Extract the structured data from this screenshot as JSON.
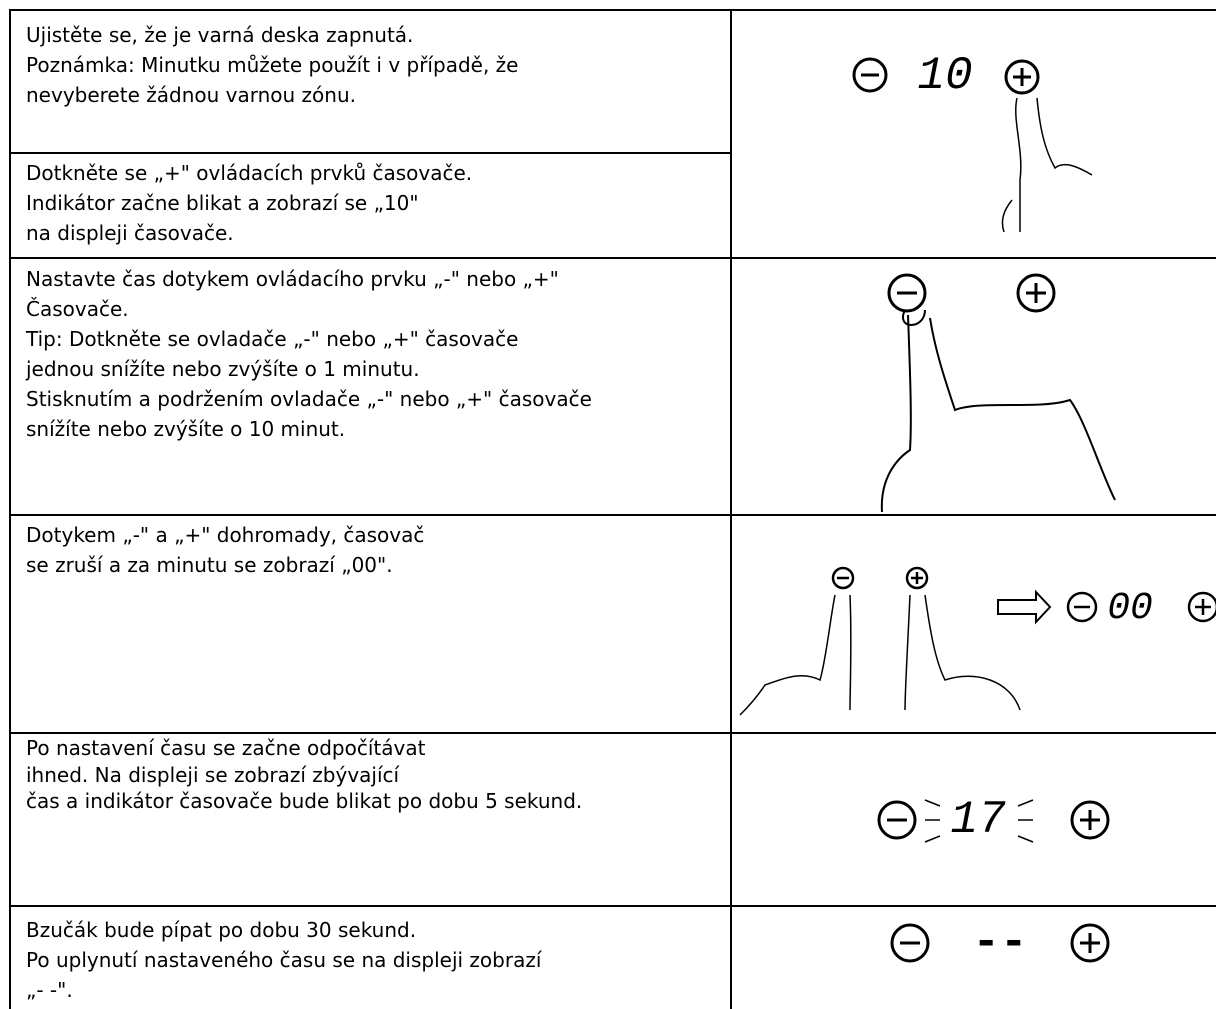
{
  "rows": [
    {
      "lines": [
        "Ujistěte se, že je varná deska zapnutá.",
        "Poznámka: Minutku můžete použít i v případě, že",
        "nevyberete žádnou varnou zónu."
      ]
    },
    {
      "lines": [
        "Dotkněte se „+\" ovládacích prvků časovače.",
        "Indikátor začne blikat a zobrazí se „10\"",
        "na displeji časovače."
      ]
    },
    {
      "lines": [
        "Nastavte čas dotykem ovládacího prvku „-\" nebo „+\"",
        "Časovače.",
        "Tip: Dotkněte se ovladače „-\" nebo „+\" časovače",
        "jednou snížíte nebo zvýšíte o 1 minutu.",
        "Stisknutím a podržením ovladače „-\" nebo „+\" časovače",
        "snížíte nebo zvýšíte o 10 minut."
      ]
    },
    {
      "lines": [
        "Dotykem „-\" a „+\" dohromady, časovač",
        "se zruší a za minutu se zobrazí „00\"."
      ]
    },
    {
      "lines": [
        "Po nastavení času se začne odpočítávat",
        "ihned. Na displeji se zobrazí zbývající",
        "čas a indikátor časovače bude blikat po dobu 5 sekund."
      ]
    },
    {
      "lines": [
        "Bzučák bude pípat po dobu 30 sekund.",
        "Po uplynutí nastaveného času se na displeji zobrazí",
        "„- -\"."
      ]
    }
  ],
  "displays": [
    "10",
    "00",
    "17",
    "--"
  ]
}
